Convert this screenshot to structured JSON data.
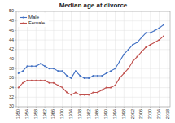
{
  "chart_data": {
    "type": "line",
    "title": "Median age at divorce",
    "x": [
      1950,
      1952,
      1954,
      1956,
      1958,
      1960,
      1962,
      1964,
      1966,
      1968,
      1970,
      1972,
      1974,
      1976,
      1978,
      1980,
      1982,
      1984,
      1986,
      1988,
      1990,
      1992,
      1994,
      1996,
      1998,
      2000,
      2002,
      2004,
      2006,
      2008,
      2010,
      2012,
      2014,
      2016
    ],
    "series": [
      {
        "name": "Male",
        "color": "#4472c4",
        "marker": "o",
        "values": [
          37.0,
          37.5,
          38.5,
          38.5,
          38.5,
          39.0,
          38.5,
          38.0,
          38.0,
          37.5,
          37.5,
          36.5,
          36.0,
          37.5,
          36.5,
          36.0,
          36.0,
          36.5,
          36.5,
          36.5,
          37.0,
          37.5,
          38.0,
          39.5,
          41.0,
          42.0,
          43.0,
          43.5,
          44.5,
          45.5,
          45.5,
          46.0,
          46.5,
          47.2
        ]
      },
      {
        "name": "Female",
        "color": "#c0504d",
        "marker": "o",
        "values": [
          34.0,
          35.0,
          35.5,
          35.5,
          35.5,
          35.5,
          35.5,
          35.0,
          35.0,
          34.5,
          34.0,
          33.0,
          32.5,
          33.0,
          32.5,
          32.5,
          32.5,
          33.0,
          33.0,
          33.5,
          34.0,
          34.0,
          34.5,
          36.0,
          37.0,
          38.0,
          39.5,
          40.5,
          41.5,
          42.5,
          43.0,
          43.5,
          44.0,
          44.8
        ]
      }
    ],
    "xlim": [
      1949,
      2019
    ],
    "xticks": [
      1950,
      1954,
      1958,
      1962,
      1966,
      1970,
      1974,
      1978,
      1982,
      1986,
      1990,
      1994,
      1998,
      2002,
      2006,
      2010,
      2014,
      2018
    ],
    "ylim": [
      30,
      50
    ],
    "yticks": [
      30,
      32,
      34,
      36,
      38,
      40,
      42,
      44,
      46,
      48,
      50
    ],
    "grid": true,
    "legend": "upper left"
  }
}
